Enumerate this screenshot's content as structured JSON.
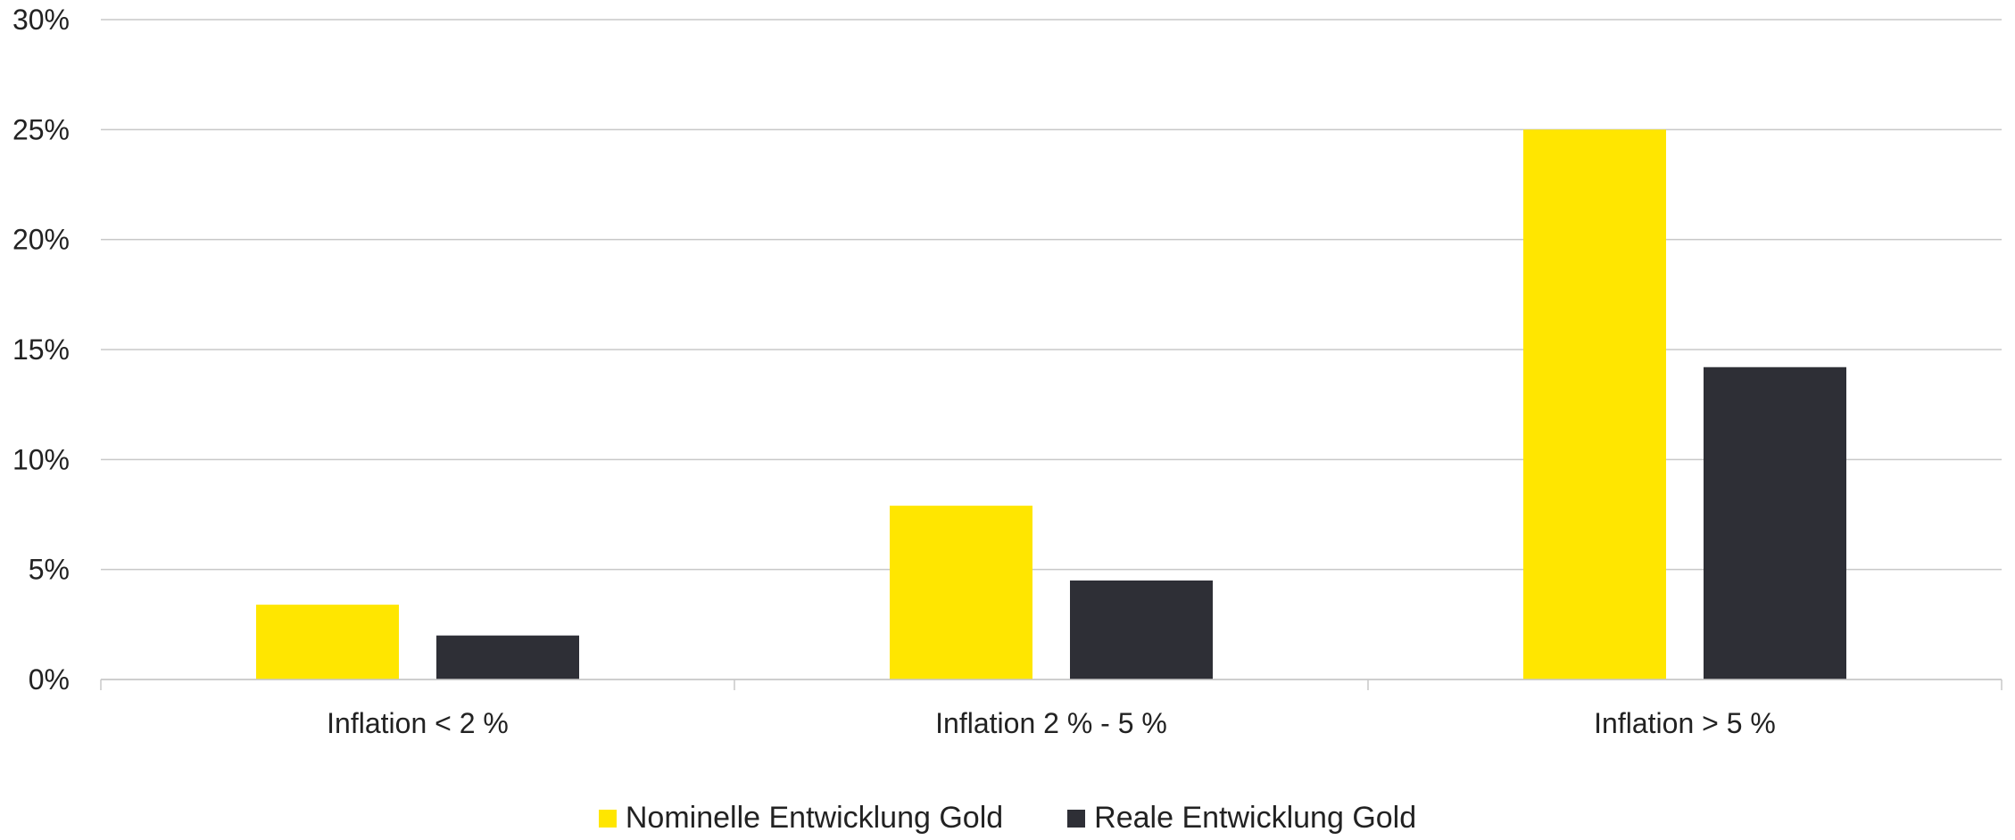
{
  "chart_data": {
    "type": "bar",
    "categories": [
      "Inflation < 2 %",
      "Inflation 2 % - 5 %",
      "Inflation > 5 %"
    ],
    "series": [
      {
        "name": "Nominelle Entwicklung Gold",
        "values": [
          3.4,
          7.9,
          25.0
        ],
        "color": "#FFE600"
      },
      {
        "name": "Reale Entwicklung Gold",
        "values": [
          2.0,
          4.5,
          14.2
        ],
        "color": "#2E2F36"
      }
    ],
    "ylim": [
      0,
      30
    ],
    "yticks": [
      0,
      5,
      10,
      15,
      20,
      25,
      30
    ],
    "ytick_labels": [
      "0%",
      "5%",
      "10%",
      "15%",
      "20%",
      "25%",
      "30%"
    ],
    "grid": true,
    "legend_position": "bottom-center",
    "gridline_color": "#C8C8C8",
    "title": "",
    "xlabel": "",
    "ylabel": ""
  }
}
